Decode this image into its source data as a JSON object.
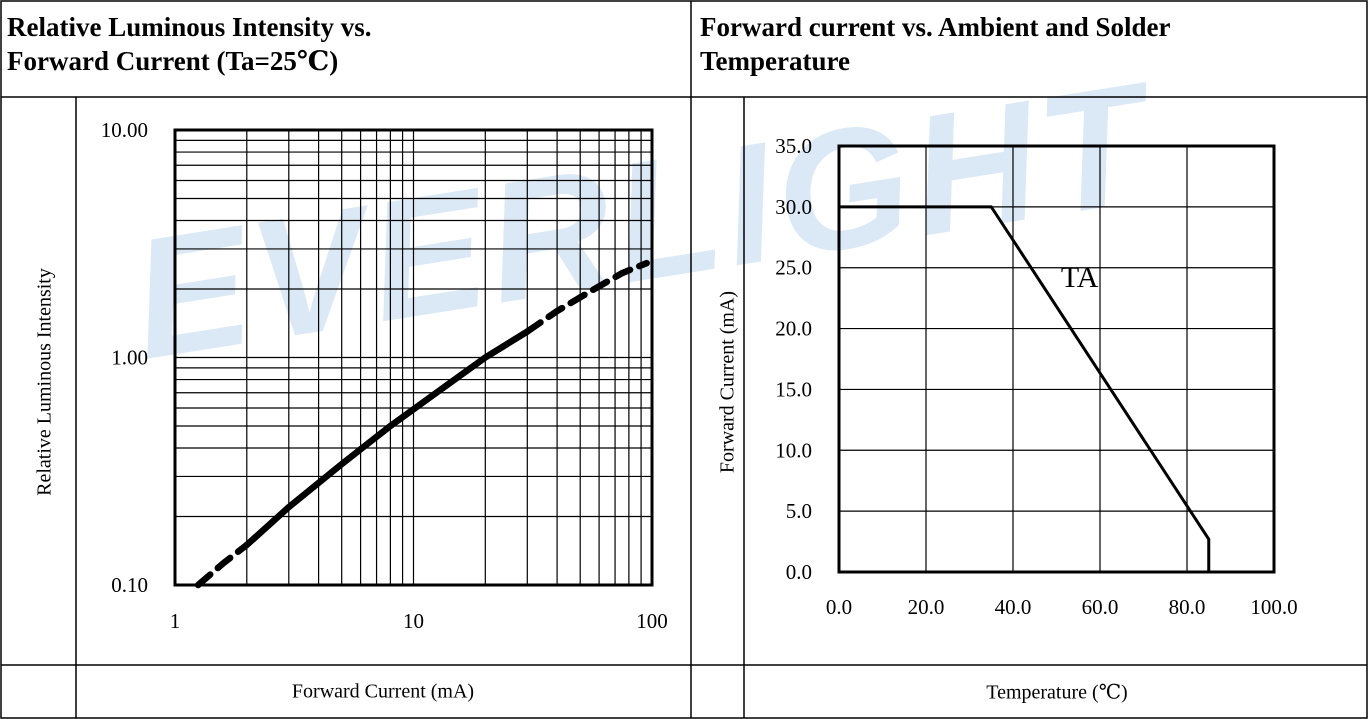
{
  "watermark": "EVERLIGHT",
  "left_panel": {
    "title_line1": "Relative Luminous Intensity vs.",
    "title_line2": "Forward Current (Ta=25℃)",
    "ylabel": "Relative Luminous Intensity",
    "xlabel": "Forward Current (mA)"
  },
  "right_panel": {
    "title_line1": "Forward current vs. Ambient and Solder",
    "title_line2": "Temperature",
    "ylabel": "Forward Current (mA)",
    "xlabel": "Temperature (℃)"
  },
  "chart_data": [
    {
      "type": "line",
      "x_scale": "log",
      "y_scale": "log",
      "xlim": [
        1,
        100
      ],
      "ylim": [
        0.1,
        10
      ],
      "x_tick_labels": [
        "1",
        "10",
        "100"
      ],
      "y_tick_labels": [
        "10.00",
        "1.00",
        "0.10"
      ],
      "grid": true,
      "series": [
        {
          "style": "solid",
          "x": [
            2,
            3,
            5,
            8,
            12,
            20,
            30
          ],
          "y": [
            0.15,
            0.22,
            0.34,
            0.5,
            0.68,
            1.0,
            1.3
          ]
        },
        {
          "style": "dashed",
          "x": [
            1.25,
            1.6,
            2
          ],
          "y": [
            0.1,
            0.125,
            0.15
          ]
        },
        {
          "style": "dashed",
          "x": [
            30,
            40,
            55,
            75,
            95
          ],
          "y": [
            1.3,
            1.6,
            1.95,
            2.35,
            2.6
          ]
        }
      ]
    },
    {
      "type": "line",
      "xlim": [
        0,
        100
      ],
      "ylim": [
        0,
        35
      ],
      "x_tick_labels": [
        "0.0",
        "20.0",
        "40.0",
        "60.0",
        "80.0",
        "100.0"
      ],
      "y_tick_labels": [
        "35.0",
        "30.0",
        "25.0",
        "20.0",
        "15.0",
        "10.0",
        "5.0",
        "0.0"
      ],
      "grid": true,
      "annotation": "TA",
      "series": [
        {
          "name": "TA",
          "x": [
            0,
            35,
            85,
            85
          ],
          "y": [
            30,
            30,
            2.7,
            0
          ]
        }
      ]
    }
  ]
}
